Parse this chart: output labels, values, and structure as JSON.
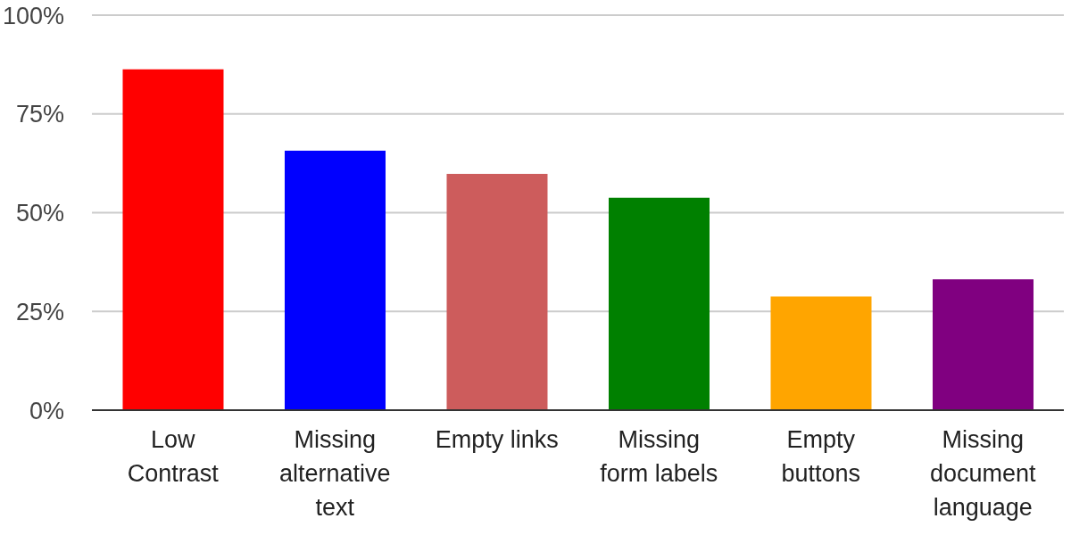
{
  "chart_data": {
    "type": "bar",
    "categories": [
      "Low Contrast",
      "Missing alternative text",
      "Empty links",
      "Missing form labels",
      "Empty buttons",
      "Missing document language"
    ],
    "values": [
      86.3,
      65.7,
      59.8,
      53.8,
      28.8,
      33.1
    ],
    "colors": [
      "#ff0000",
      "#0000ff",
      "#cd5c5c",
      "#008000",
      "#ffa500",
      "#800080"
    ],
    "ylim": [
      0,
      100
    ],
    "yticks": [
      {
        "value": 0,
        "label": "0%"
      },
      {
        "value": 25,
        "label": "25%"
      },
      {
        "value": 50,
        "label": "50%"
      },
      {
        "value": 75,
        "label": "75%"
      },
      {
        "value": 100,
        "label": "100%"
      }
    ],
    "grid": "y"
  }
}
